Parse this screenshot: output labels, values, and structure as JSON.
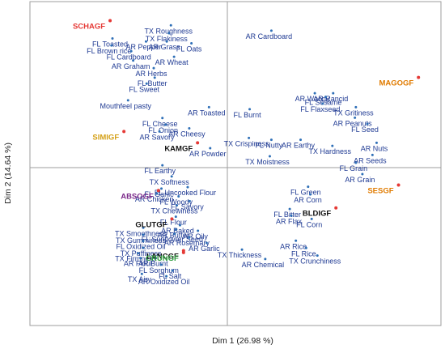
{
  "chart_data": {
    "type": "scatter",
    "xlabel": "Dim 1 (26.98 %)",
    "ylabel": "Dim 2 (14.64 %)",
    "xlim": [
      -1,
      1
    ],
    "ylim": [
      -1,
      1
    ],
    "grid": false,
    "colors": {
      "variable_point": "#2e6fb7",
      "variable_label": "#1f3a93",
      "product_point": "#e53935",
      "axis": "#9e9e9e"
    },
    "series": [
      {
        "kind": "variables",
        "points": [
          {
            "label": "TX Roughness",
            "x": -0.286,
            "y": 0.901
          },
          {
            "label": "TX Flakiness",
            "x": -0.296,
            "y": 0.851
          },
          {
            "label": "FL Toasted",
            "x": -0.582,
            "y": 0.818
          },
          {
            "label": "AR Pepper",
            "x": -0.412,
            "y": 0.799
          },
          {
            "label": "AR Grass",
            "x": -0.307,
            "y": 0.799
          },
          {
            "label": "FL Oats",
            "x": -0.182,
            "y": 0.787
          },
          {
            "label": "FL Brown rice",
            "x": -0.587,
            "y": 0.774
          },
          {
            "label": "FL Cardboard",
            "x": -0.487,
            "y": 0.737
          },
          {
            "label": "AR Graham",
            "x": -0.477,
            "y": 0.678
          },
          {
            "label": "AR Wheat",
            "x": -0.27,
            "y": 0.702
          },
          {
            "label": "AR Herbs",
            "x": -0.373,
            "y": 0.63
          },
          {
            "label": "FL Butter",
            "x": -0.368,
            "y": 0.57
          },
          {
            "label": "FL Sweet",
            "x": -0.409,
            "y": 0.532
          },
          {
            "label": "Mouthfeel pasty",
            "x": -0.503,
            "y": 0.426
          },
          {
            "label": "AR Toasted",
            "x": -0.093,
            "y": 0.383
          },
          {
            "label": "FL Cheese",
            "x": -0.329,
            "y": 0.314
          },
          {
            "label": "FL Onion",
            "x": -0.313,
            "y": 0.272
          },
          {
            "label": "AR Savory",
            "x": -0.344,
            "y": 0.229
          },
          {
            "label": "AR Cheesy",
            "x": -0.193,
            "y": 0.249
          },
          {
            "label": "AR Powder",
            "x": -0.087,
            "y": 0.123
          },
          {
            "label": "FL Earthy",
            "x": -0.329,
            "y": 0.015
          },
          {
            "label": "AR Cardboard",
            "x": 0.223,
            "y": 0.867
          },
          {
            "label": "AR Woody",
            "x": 0.443,
            "y": 0.471
          },
          {
            "label": "AR Rancid",
            "x": 0.536,
            "y": 0.471
          },
          {
            "label": "FL Sesame",
            "x": 0.498,
            "y": 0.448
          },
          {
            "label": "FL Flaxseed",
            "x": 0.483,
            "y": 0.405
          },
          {
            "label": "FL Burnt",
            "x": 0.113,
            "y": 0.37
          },
          {
            "label": "TX Gritiness",
            "x": 0.651,
            "y": 0.383
          },
          {
            "label": "AR Peanuts",
            "x": 0.646,
            "y": 0.316
          },
          {
            "label": "FL Seed",
            "x": 0.709,
            "y": 0.277
          },
          {
            "label": "TX Crispiness",
            "x": 0.109,
            "y": 0.188
          },
          {
            "label": "FL Nutty",
            "x": 0.223,
            "y": 0.176
          },
          {
            "label": "AR Earthy",
            "x": 0.371,
            "y": 0.176
          },
          {
            "label": "TX Hardness",
            "x": 0.532,
            "y": 0.138
          },
          {
            "label": "AR Nuts",
            "x": 0.756,
            "y": 0.157
          },
          {
            "label": "TX Moistness",
            "x": 0.215,
            "y": 0.072
          },
          {
            "label": "AR Seeds",
            "x": 0.735,
            "y": 0.08
          },
          {
            "label": "FL Grain",
            "x": 0.651,
            "y": 0.031
          },
          {
            "label": "AR Grain",
            "x": 0.684,
            "y": -0.041
          },
          {
            "label": "TX Softness",
            "x": -0.282,
            "y": -0.056
          },
          {
            "label": "FL Garlic",
            "x": -0.334,
            "y": -0.133
          },
          {
            "label": "FL Uncooked Flour",
            "x": -0.201,
            "y": -0.124
          },
          {
            "label": "AR Chicken",
            "x": -0.358,
            "y": -0.165
          },
          {
            "label": "FL Woody",
            "x": -0.247,
            "y": -0.182
          },
          {
            "label": "FL Savory",
            "x": -0.191,
            "y": -0.212
          },
          {
            "label": "TX Chewiness",
            "x": -0.256,
            "y": -0.239
          },
          {
            "label": "FL Flour",
            "x": -0.261,
            "y": -0.311
          },
          {
            "label": "AR Baked",
            "x": -0.24,
            "y": -0.365
          },
          {
            "label": "AR Butter",
            "x": -0.261,
            "y": -0.392
          },
          {
            "label": "AR Oily",
            "x": -0.149,
            "y": -0.4
          },
          {
            "label": "FL Sunflower Seed",
            "x": -0.267,
            "y": -0.419
          },
          {
            "label": "AR Rosemary",
            "x": -0.193,
            "y": -0.442
          },
          {
            "label": "AR Garlic",
            "x": -0.105,
            "y": -0.477
          },
          {
            "label": "TX Smoothness",
            "x": -0.426,
            "y": -0.381
          },
          {
            "label": "TX Gumminess",
            "x": -0.426,
            "y": -0.425
          },
          {
            "label": "FL Oxidized Oil",
            "x": -0.426,
            "y": -0.465
          },
          {
            "label": "TX Puffiness",
            "x": -0.426,
            "y": -0.508
          },
          {
            "label": "TX Firmness",
            "x": -0.452,
            "y": -0.542
          },
          {
            "label": "AR Flour",
            "x": -0.44,
            "y": -0.573
          },
          {
            "label": "AR Burnt",
            "x": -0.363,
            "y": -0.573
          },
          {
            "label": "FL Sorghum",
            "x": -0.335,
            "y": -0.615
          },
          {
            "label": "FL Salt",
            "x": -0.278,
            "y": -0.652
          },
          {
            "label": "TX Airy",
            "x": -0.433,
            "y": -0.673
          },
          {
            "label": "AR Oxidized Oil",
            "x": -0.309,
            "y": -0.688
          },
          {
            "label": "FL Green",
            "x": 0.409,
            "y": -0.121
          },
          {
            "label": "AR Corn",
            "x": 0.42,
            "y": -0.17
          },
          {
            "label": "FL Bitter",
            "x": 0.316,
            "y": -0.262
          },
          {
            "label": "AR Flax",
            "x": 0.324,
            "y": -0.304
          },
          {
            "label": "FL Corn",
            "x": 0.427,
            "y": -0.325
          },
          {
            "label": "AR Rice",
            "x": 0.347,
            "y": -0.463
          },
          {
            "label": "FL Rice",
            "x": 0.399,
            "y": -0.509
          },
          {
            "label": "TX Thickness",
            "x": 0.074,
            "y": -0.519
          },
          {
            "label": "AR Chemical",
            "x": 0.192,
            "y": -0.579
          },
          {
            "label": "TX Crunchiness",
            "x": 0.456,
            "y": -0.557
          }
        ]
      },
      {
        "kind": "products",
        "points": [
          {
            "label": "SCHAGF",
            "x": -0.594,
            "y": 0.931,
            "color": "#e53935"
          },
          {
            "label": "MAGOGF",
            "x": 0.968,
            "y": 0.571,
            "color": "#e07b00"
          },
          {
            "label": "SIMIGF",
            "x": -0.524,
            "y": 0.229,
            "color": "#d4a017"
          },
          {
            "label": "KAMGF",
            "x": -0.151,
            "y": 0.157,
            "color": "#111111"
          },
          {
            "label": "ABSOGF",
            "x": -0.349,
            "y": -0.145,
            "color": "#7b2a8a"
          },
          {
            "label": "GLUTGF",
            "x": -0.281,
            "y": -0.325,
            "color": "#111111"
          },
          {
            "label": "LANCGF",
            "x": -0.222,
            "y": -0.526,
            "color": "#111111"
          },
          {
            "label": "CRUNGF",
            "x": -0.222,
            "y": -0.538,
            "color": "#2e9e3e"
          },
          {
            "label": "BLDIGF",
            "x": 0.55,
            "y": -0.255,
            "color": "#111111"
          },
          {
            "label": "SESGF",
            "x": 0.867,
            "y": -0.11,
            "color": "#e07b00"
          }
        ]
      }
    ]
  }
}
